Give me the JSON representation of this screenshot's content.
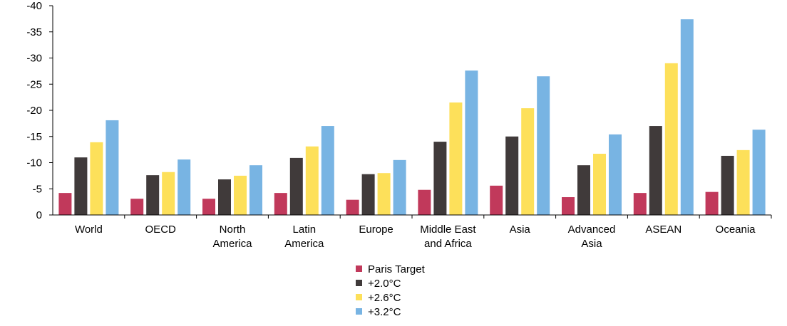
{
  "chart_data": {
    "type": "bar",
    "title": "",
    "xlabel": "",
    "ylabel": "",
    "ylim": [
      0,
      -40
    ],
    "yticks": [
      "0",
      "-5",
      "-10",
      "-15",
      "-20",
      "-25",
      "-30",
      "-35",
      "-40"
    ],
    "ytick_values": [
      0,
      -5,
      -10,
      -15,
      -20,
      -25,
      -30,
      -35,
      -40
    ],
    "categories": [
      [
        "World"
      ],
      [
        "OECD"
      ],
      [
        "North",
        "America"
      ],
      [
        "Latin",
        "America"
      ],
      [
        "Europe"
      ],
      [
        "Middle East",
        "and Africa"
      ],
      [
        "Asia"
      ],
      [
        "Advanced",
        "Asia"
      ],
      [
        "ASEAN"
      ],
      [
        "Oceania"
      ]
    ],
    "legend_position": "bottom-center",
    "series": [
      {
        "name": "Paris Target",
        "color": "#c1395b",
        "values": [
          -4.2,
          -3.1,
          -3.1,
          -4.2,
          -2.9,
          -4.8,
          -5.6,
          -3.4,
          -4.2,
          -4.4
        ]
      },
      {
        "name": "+2.0°C",
        "color": "#403a3a",
        "values": [
          -11.0,
          -7.6,
          -6.8,
          -10.9,
          -7.8,
          -14.0,
          -15.0,
          -9.5,
          -17.0,
          -11.3
        ]
      },
      {
        "name": "+2.6°C",
        "color": "#fde05a",
        "values": [
          -13.9,
          -8.2,
          -7.5,
          -13.1,
          -8.0,
          -21.5,
          -20.4,
          -11.7,
          -29.0,
          -12.4
        ]
      },
      {
        "name": "+3.2°C",
        "color": "#78b4e3",
        "values": [
          -18.1,
          -10.6,
          -9.5,
          -17.0,
          -10.5,
          -27.6,
          -26.5,
          -15.4,
          -37.4,
          -16.3
        ]
      }
    ]
  }
}
